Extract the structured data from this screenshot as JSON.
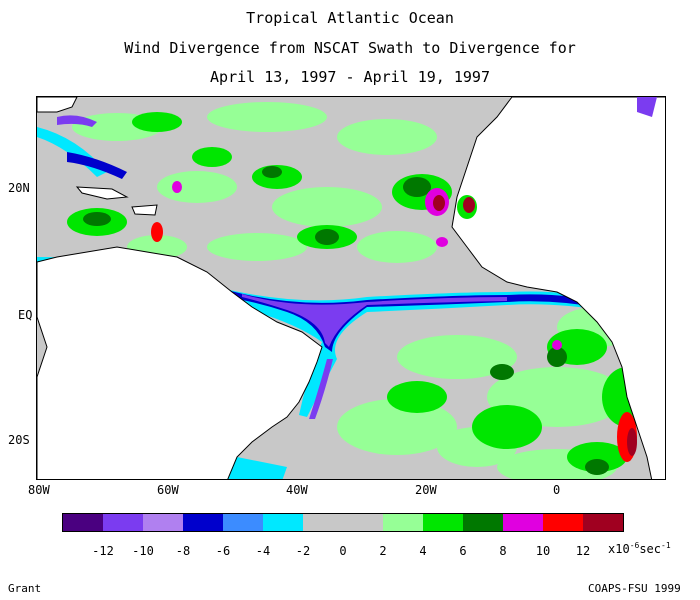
{
  "title": {
    "line1": "Tropical Atlantic Ocean",
    "line2": "Wind Divergence from NSCAT Swath to Divergence for",
    "line3": "April 13, 1997 - April 19, 1997"
  },
  "map": {
    "lat_labels": [
      "20N",
      "EQ",
      "20S"
    ],
    "lon_labels": [
      "80W",
      "60W",
      "40W",
      "20W",
      "0"
    ]
  },
  "colorbar": {
    "colors": [
      "#4a0080",
      "#7b3cf0",
      "#b080f0",
      "#0000cc",
      "#3c8cff",
      "#00e8ff",
      "#c8c8c8",
      "#c8c8c8",
      "#96ff96",
      "#00e600",
      "#007800",
      "#e000e0",
      "#ff0000",
      "#a00020"
    ],
    "tick_labels": [
      "-12",
      "-10",
      "-8",
      "-6",
      "-4",
      "-2",
      "0",
      "2",
      "4",
      "6",
      "8",
      "10",
      "12"
    ],
    "units_prefix": "x10",
    "units_exp": "-6",
    "units_mid": "sec",
    "units_exp2": "-1"
  },
  "footer": {
    "left": "Grant",
    "right": "COAPS-FSU 1999"
  }
}
